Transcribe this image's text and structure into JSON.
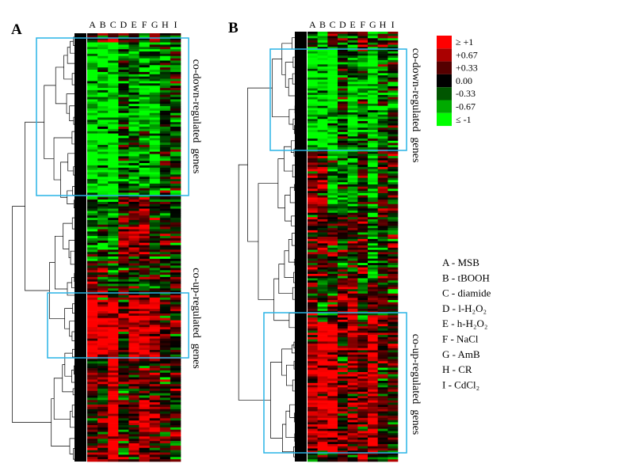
{
  "chart_data": {
    "type": "heatmap",
    "columns": [
      "A",
      "B",
      "C",
      "D",
      "E",
      "F",
      "G",
      "H",
      "I"
    ],
    "color_scale": {
      "min_color": "#00ff00",
      "mid_color": "#000000",
      "max_color": "#ff0000",
      "legend": [
        {
          "label": "≥ +1",
          "value": 1,
          "color": "#ff0000"
        },
        {
          "label": "+0.67",
          "value": 0.67,
          "color": "#aa0000"
        },
        {
          "label": "+0.33",
          "value": 0.33,
          "color": "#550000"
        },
        {
          "label": "0.00",
          "value": 0,
          "color": "#000000"
        },
        {
          "label": "-0.33",
          "value": -0.33,
          "color": "#005500"
        },
        {
          "label": "-0.67",
          "value": -0.67,
          "color": "#00aa00"
        },
        {
          "label": "≤ -1",
          "value": -1,
          "color": "#00ff00"
        }
      ]
    },
    "column_key": [
      "A - MSB",
      "B - tBOOH",
      "C - diamide",
      "D - l-H₂O₂",
      "E - h-H₂O₂",
      "F - NaCl",
      "G - AmB",
      "H - CR",
      "I - CdCl₂"
    ],
    "box_color": "#29b4e6",
    "panels": [
      {
        "label": "A",
        "down_label": "co-down-regulated  genes",
        "up_label": "co-up-regulated  genes",
        "clusters": [
          {
            "rows": 4,
            "mean": [
              0.2,
              0.3,
              0.5,
              0,
              0,
              -0.3,
              0.5,
              0,
              0
            ]
          },
          {
            "rows": 68,
            "mean": [
              -1,
              -1,
              -1,
              -0.2,
              -0.6,
              -0.8,
              -0.7,
              -0.2,
              -0.2
            ],
            "boxed": "down"
          },
          {
            "rows": 28,
            "mean": [
              -0.6,
              -0.3,
              -0.5,
              0.3,
              0.4,
              0.5,
              -0.2,
              0.1,
              0
            ]
          },
          {
            "rows": 15,
            "mean": [
              0.2,
              0.3,
              -0.3,
              0.1,
              0.2,
              0.2,
              0.1,
              0,
              0
            ]
          },
          {
            "rows": 28,
            "mean": [
              1,
              1,
              1,
              0.3,
              0.8,
              0.8,
              0.6,
              0.2,
              0.1
            ],
            "boxed": "up"
          },
          {
            "rows": 45,
            "mean": [
              0.2,
              0.2,
              1,
              0.1,
              0.3,
              0.5,
              0.3,
              0.1,
              0
            ]
          }
        ]
      },
      {
        "label": "B",
        "down_label": "co-down-regulated  genes",
        "up_label": "co-up-regulated  genes",
        "clusters": [
          {
            "rows": 7,
            "mean": [
              0.1,
              -0.8,
              0.2,
              0,
              -0.2,
              0.6,
              -0.3,
              0,
              0
            ]
          },
          {
            "rows": 48,
            "mean": [
              -1,
              -1,
              -1,
              -0.1,
              -0.7,
              -0.4,
              -1,
              -0.3,
              -0.2
            ],
            "boxed": "down"
          },
          {
            "rows": 28,
            "mean": [
              0.5,
              0.4,
              -0.6,
              -0.5,
              -0.6,
              0.1,
              -0.8,
              0.1,
              0
            ]
          },
          {
            "rows": 30,
            "mean": [
              0.2,
              0.3,
              0.2,
              0,
              0.1,
              0.2,
              -0.6,
              0,
              0
            ]
          },
          {
            "rows": 20,
            "mean": [
              0.1,
              -0.4,
              0.1,
              0.4,
              0.4,
              -0.4,
              0.3,
              0.2,
              0
            ]
          },
          {
            "rows": 60,
            "mean": [
              0.7,
              1,
              1,
              0.2,
              0.5,
              0.5,
              0.9,
              0.2,
              0.1
            ],
            "boxed": "up"
          },
          {
            "rows": 4,
            "mean": [
              0,
              0,
              0,
              0,
              0,
              0.8,
              0,
              0,
              0
            ]
          }
        ]
      }
    ]
  }
}
